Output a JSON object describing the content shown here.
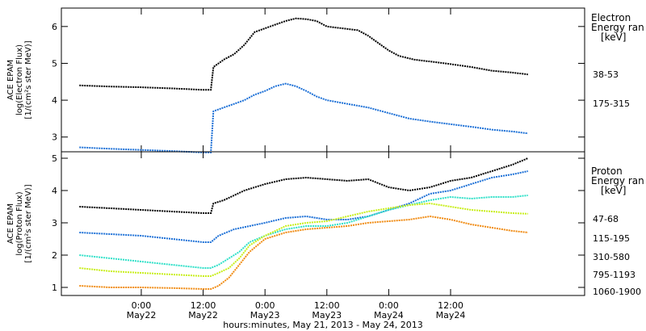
{
  "chart_data": [
    {
      "type": "line",
      "ylabel_lines": [
        "ACE EPAM",
        "log(Electron Flux)",
        "[1/(cm²s ster MeV)]"
      ],
      "legend_title_lines": [
        "Electron",
        "Energy ran",
        "[keV]"
      ],
      "ylim": [
        2.6,
        6.5
      ],
      "yticks": [
        3,
        4,
        5,
        6
      ],
      "series": [
        {
          "name": "38-53",
          "color": "#000000",
          "points": [
            [
              -12,
              4.4
            ],
            [
              -6,
              4.37
            ],
            [
              0,
              4.35
            ],
            [
              6,
              4.32
            ],
            [
              12,
              4.28
            ],
            [
              13.5,
              4.28
            ],
            [
              14,
              4.9
            ],
            [
              16,
              5.1
            ],
            [
              18,
              5.25
            ],
            [
              20,
              5.5
            ],
            [
              22,
              5.85
            ],
            [
              24,
              5.95
            ],
            [
              26,
              6.05
            ],
            [
              28,
              6.15
            ],
            [
              30,
              6.22
            ],
            [
              32,
              6.2
            ],
            [
              34,
              6.15
            ],
            [
              36,
              6.0
            ],
            [
              39,
              5.95
            ],
            [
              42,
              5.9
            ],
            [
              44,
              5.75
            ],
            [
              46,
              5.55
            ],
            [
              48,
              5.35
            ],
            [
              50,
              5.2
            ],
            [
              53,
              5.1
            ],
            [
              56,
              5.05
            ],
            [
              60,
              4.98
            ],
            [
              64,
              4.9
            ],
            [
              68,
              4.8
            ],
            [
              72,
              4.75
            ],
            [
              75,
              4.7
            ]
          ]
        },
        {
          "name": "175-315",
          "color": "#1b6fd6",
          "points": [
            [
              -12,
              2.72
            ],
            [
              -6,
              2.68
            ],
            [
              0,
              2.65
            ],
            [
              6,
              2.62
            ],
            [
              12,
              2.58
            ],
            [
              13.5,
              2.58
            ],
            [
              14,
              3.7
            ],
            [
              16,
              3.8
            ],
            [
              18,
              3.9
            ],
            [
              20,
              4.0
            ],
            [
              22,
              4.15
            ],
            [
              24,
              4.25
            ],
            [
              26,
              4.38
            ],
            [
              28,
              4.45
            ],
            [
              30,
              4.38
            ],
            [
              32,
              4.25
            ],
            [
              34,
              4.1
            ],
            [
              36,
              4.0
            ],
            [
              40,
              3.9
            ],
            [
              44,
              3.8
            ],
            [
              48,
              3.65
            ],
            [
              52,
              3.5
            ],
            [
              56,
              3.42
            ],
            [
              60,
              3.35
            ],
            [
              64,
              3.28
            ],
            [
              68,
              3.2
            ],
            [
              72,
              3.15
            ],
            [
              75,
              3.1
            ]
          ]
        }
      ]
    },
    {
      "type": "line",
      "ylabel_lines": [
        "ACE EPAM",
        "log(Proton Flux)",
        "[1/(cm²s ster MeV)]"
      ],
      "legend_title_lines": [
        "Proton",
        "Energy ran",
        "[keV]"
      ],
      "ylim": [
        0.75,
        5.2
      ],
      "yticks": [
        1,
        2,
        3,
        4,
        5
      ],
      "series": [
        {
          "name": "47-68",
          "color": "#000000",
          "points": [
            [
              -12,
              3.5
            ],
            [
              -6,
              3.45
            ],
            [
              0,
              3.4
            ],
            [
              6,
              3.35
            ],
            [
              12,
              3.3
            ],
            [
              13.5,
              3.3
            ],
            [
              14,
              3.6
            ],
            [
              16,
              3.7
            ],
            [
              18,
              3.85
            ],
            [
              20,
              4.0
            ],
            [
              24,
              4.2
            ],
            [
              28,
              4.35
            ],
            [
              32,
              4.4
            ],
            [
              36,
              4.35
            ],
            [
              40,
              4.3
            ],
            [
              44,
              4.35
            ],
            [
              48,
              4.1
            ],
            [
              52,
              4.0
            ],
            [
              56,
              4.1
            ],
            [
              60,
              4.3
            ],
            [
              64,
              4.4
            ],
            [
              68,
              4.6
            ],
            [
              72,
              4.8
            ],
            [
              75,
              5.0
            ]
          ]
        },
        {
          "name": "115-195",
          "color": "#1b6fd6",
          "points": [
            [
              -12,
              2.7
            ],
            [
              -6,
              2.65
            ],
            [
              0,
              2.6
            ],
            [
              6,
              2.5
            ],
            [
              12,
              2.4
            ],
            [
              13.5,
              2.4
            ],
            [
              15,
              2.6
            ],
            [
              18,
              2.8
            ],
            [
              21,
              2.9
            ],
            [
              24,
              3.0
            ],
            [
              28,
              3.15
            ],
            [
              32,
              3.2
            ],
            [
              36,
              3.1
            ],
            [
              40,
              3.1
            ],
            [
              44,
              3.2
            ],
            [
              48,
              3.4
            ],
            [
              52,
              3.6
            ],
            [
              56,
              3.9
            ],
            [
              60,
              4.0
            ],
            [
              64,
              4.2
            ],
            [
              68,
              4.4
            ],
            [
              72,
              4.5
            ],
            [
              75,
              4.6
            ]
          ]
        },
        {
          "name": "310-580",
          "color": "#2fe0c8",
          "points": [
            [
              -12,
              2.0
            ],
            [
              -6,
              1.9
            ],
            [
              0,
              1.8
            ],
            [
              6,
              1.7
            ],
            [
              12,
              1.6
            ],
            [
              13.5,
              1.6
            ],
            [
              15,
              1.7
            ],
            [
              17,
              1.9
            ],
            [
              19,
              2.1
            ],
            [
              21,
              2.4
            ],
            [
              24,
              2.6
            ],
            [
              28,
              2.8
            ],
            [
              32,
              2.9
            ],
            [
              36,
              2.9
            ],
            [
              40,
              3.0
            ],
            [
              44,
              3.2
            ],
            [
              48,
              3.4
            ],
            [
              52,
              3.55
            ],
            [
              56,
              3.7
            ],
            [
              60,
              3.8
            ],
            [
              64,
              3.75
            ],
            [
              68,
              3.8
            ],
            [
              72,
              3.8
            ],
            [
              75,
              3.85
            ]
          ]
        },
        {
          "name": "795-1193",
          "color": "#c8ee1a",
          "points": [
            [
              -12,
              1.6
            ],
            [
              -6,
              1.5
            ],
            [
              0,
              1.45
            ],
            [
              6,
              1.4
            ],
            [
              12,
              1.35
            ],
            [
              13.5,
              1.35
            ],
            [
              15,
              1.45
            ],
            [
              17,
              1.6
            ],
            [
              19,
              1.9
            ],
            [
              21,
              2.3
            ],
            [
              24,
              2.6
            ],
            [
              28,
              2.9
            ],
            [
              32,
              3.0
            ],
            [
              36,
              3.05
            ],
            [
              40,
              3.2
            ],
            [
              44,
              3.35
            ],
            [
              48,
              3.45
            ],
            [
              52,
              3.55
            ],
            [
              56,
              3.6
            ],
            [
              60,
              3.5
            ],
            [
              64,
              3.4
            ],
            [
              68,
              3.35
            ],
            [
              72,
              3.3
            ],
            [
              75,
              3.28
            ]
          ]
        },
        {
          "name": "1060-1900",
          "color": "#f08a10",
          "points": [
            [
              -12,
              1.05
            ],
            [
              -6,
              1.0
            ],
            [
              0,
              1.0
            ],
            [
              6,
              0.98
            ],
            [
              12,
              0.95
            ],
            [
              13.5,
              0.95
            ],
            [
              15,
              1.05
            ],
            [
              17,
              1.3
            ],
            [
              19,
              1.7
            ],
            [
              21,
              2.1
            ],
            [
              24,
              2.5
            ],
            [
              28,
              2.7
            ],
            [
              32,
              2.8
            ],
            [
              36,
              2.85
            ],
            [
              40,
              2.9
            ],
            [
              44,
              3.0
            ],
            [
              48,
              3.05
            ],
            [
              52,
              3.1
            ],
            [
              56,
              3.2
            ],
            [
              60,
              3.1
            ],
            [
              64,
              2.95
            ],
            [
              68,
              2.85
            ],
            [
              72,
              2.75
            ],
            [
              75,
              2.7
            ]
          ]
        }
      ]
    }
  ],
  "x_axis": {
    "xlim": [
      -15.5,
      86
    ],
    "xlabel": "hours:minutes, May 21, 2013 - May 24, 2013",
    "major_ticks": [
      {
        "x": 0,
        "time": "0:00",
        "day": "May22"
      },
      {
        "x": 12,
        "time": "12:00",
        "day": "May22"
      },
      {
        "x": 24,
        "time": "0:00",
        "day": "May23"
      },
      {
        "x": 36,
        "time": "12:00",
        "day": "May23"
      },
      {
        "x": 48,
        "time": "0:00",
        "day": "May24"
      },
      {
        "x": 60,
        "time": "12:00",
        "day": "May24"
      }
    ]
  }
}
